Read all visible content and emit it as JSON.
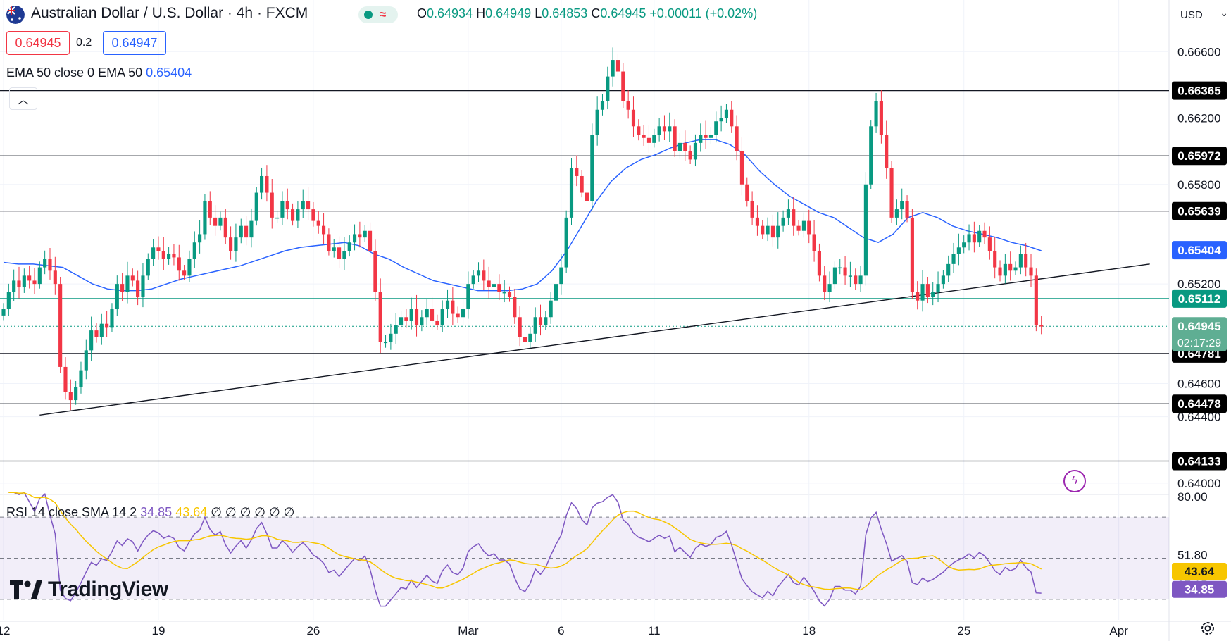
{
  "header": {
    "title": "Australian Dollar / U.S. Dollar · 4h · FXCM",
    "ohlc": {
      "o_label": "O",
      "o": "0.64934",
      "h_label": "H",
      "h": "0.64949",
      "l_label": "L",
      "l": "0.64853",
      "c_label": "C",
      "c": "0.64945",
      "change": "+0.00011 (+0.02%)"
    },
    "sell_price": "0.64945",
    "spread": "0.2",
    "buy_price": "0.64947"
  },
  "ema_legend": {
    "label": "EMA 50 close 0 EMA 50",
    "value": "0.65404"
  },
  "rsi_legend": {
    "label": "RSI 14 close SMA 14 2",
    "rsi": "34.85",
    "sma": "43.64",
    "empties": "∅ ∅ ∅ ∅ ∅ ∅"
  },
  "currency": "USD",
  "brand": "TradingView",
  "colors": {
    "up": "#089981",
    "down": "#f23645",
    "ema": "#2962ff",
    "rsi": "#7e57c2",
    "rsi_sma": "#f7c600",
    "grid": "#f0f3fa",
    "support": "#131722",
    "green_level": "#089981"
  },
  "icons": [
    "australia-flag-icon",
    "market-status-icon",
    "collapse-chevron-icon",
    "lightning-icon",
    "settings-gear-icon",
    "tradingview-logo-icon",
    "currency-chevron-icon"
  ],
  "chart_data": {
    "type": "candlestick",
    "title": "Australian Dollar / U.S. Dollar · 4h · FXCM",
    "ylim": [
      0.6394,
      0.6672
    ],
    "y_ticks": [
      "0.66600",
      "0.66200",
      "0.65800",
      "0.65200",
      "0.64600",
      "0.64400",
      "0.64000"
    ],
    "x_ticks": [
      {
        "label": "12",
        "bar": 0
      },
      {
        "label": "19",
        "bar": 30
      },
      {
        "label": "26",
        "bar": 60
      },
      {
        "label": "Mar",
        "bar": 90
      },
      {
        "label": "6",
        "bar": 108
      },
      {
        "label": "11",
        "bar": 126
      },
      {
        "label": "18",
        "bar": 156
      },
      {
        "label": "25",
        "bar": 186
      },
      {
        "label": "Apr",
        "bar": 216
      }
    ],
    "levels": [
      {
        "label": "0.66365",
        "value": 0.66365,
        "style": "black"
      },
      {
        "label": "0.65972",
        "value": 0.65972,
        "style": "black"
      },
      {
        "label": "0.65639",
        "value": 0.65639,
        "style": "black"
      },
      {
        "label": "0.65112",
        "value": 0.65112,
        "style": "green"
      },
      {
        "label": "0.64781",
        "value": 0.64781,
        "style": "black"
      },
      {
        "label": "0.64478",
        "value": 0.64478,
        "style": "black"
      },
      {
        "label": "0.64133",
        "value": 0.64133,
        "style": "black"
      }
    ],
    "ema_label": "0.65404",
    "last_price": {
      "label": "0.64945",
      "countdown": "02:17:29",
      "value": 0.64945
    },
    "trendline": {
      "from": {
        "bar": 7,
        "price": 0.6441
      },
      "to": {
        "bar": 222,
        "price": 0.6532
      }
    },
    "closes": [
      0.6505,
      0.6515,
      0.6522,
      0.6518,
      0.6525,
      0.6522,
      0.652,
      0.653,
      0.6535,
      0.6528,
      0.652,
      0.647,
      0.6455,
      0.645,
      0.6458,
      0.6468,
      0.648,
      0.6492,
      0.6488,
      0.6496,
      0.6494,
      0.6505,
      0.652,
      0.6515,
      0.6525,
      0.6522,
      0.6512,
      0.6525,
      0.6535,
      0.6542,
      0.654,
      0.6535,
      0.6538,
      0.6536,
      0.6528,
      0.6525,
      0.6535,
      0.6545,
      0.655,
      0.657,
      0.656,
      0.6555,
      0.656,
      0.6548,
      0.654,
      0.6548,
      0.6555,
      0.6548,
      0.6558,
      0.6575,
      0.6585,
      0.6575,
      0.656,
      0.656,
      0.657,
      0.6565,
      0.6558,
      0.6565,
      0.657,
      0.6565,
      0.6558,
      0.6555,
      0.655,
      0.654,
      0.6542,
      0.6535,
      0.654,
      0.6545,
      0.655,
      0.6548,
      0.6552,
      0.654,
      0.6515,
      0.6485,
      0.6485,
      0.649,
      0.6495,
      0.65,
      0.6498,
      0.6505,
      0.6495,
      0.65,
      0.6505,
      0.6498,
      0.6495,
      0.6505,
      0.651,
      0.6502,
      0.65,
      0.6505,
      0.652,
      0.6525,
      0.6528,
      0.6522,
      0.6518,
      0.652,
      0.6515,
      0.6515,
      0.6512,
      0.65,
      0.6488,
      0.6485,
      0.649,
      0.65,
      0.6495,
      0.65,
      0.651,
      0.652,
      0.653,
      0.656,
      0.659,
      0.6585,
      0.6575,
      0.657,
      0.661,
      0.6625,
      0.663,
      0.6645,
      0.6655,
      0.6648,
      0.663,
      0.6625,
      0.6615,
      0.661,
      0.6608,
      0.6605,
      0.661,
      0.6615,
      0.6612,
      0.6615,
      0.66,
      0.6605,
      0.66,
      0.6595,
      0.6605,
      0.661,
      0.6608,
      0.661,
      0.6618,
      0.662,
      0.6625,
      0.6615,
      0.66,
      0.658,
      0.657,
      0.656,
      0.6555,
      0.655,
      0.6555,
      0.6548,
      0.6555,
      0.656,
      0.6565,
      0.6555,
      0.6552,
      0.6558,
      0.655,
      0.654,
      0.6525,
      0.6515,
      0.652,
      0.653,
      0.653,
      0.6525,
      0.6525,
      0.652,
      0.6525,
      0.658,
      0.6615,
      0.663,
      0.661,
      0.659,
      0.656,
      0.6565,
      0.657,
      0.656,
      0.6515,
      0.651,
      0.652,
      0.6512,
      0.6515,
      0.652,
      0.6525,
      0.6532,
      0.6538,
      0.6542,
      0.6545,
      0.655,
      0.6545,
      0.6552,
      0.6548,
      0.654,
      0.653,
      0.6525,
      0.6532,
      0.6528,
      0.653,
      0.6538,
      0.653,
      0.6525,
      0.6495,
      0.64945
    ],
    "ema50": [
      0.6533,
      0.6532,
      0.6532,
      0.6531,
      0.653,
      0.6525,
      0.652,
      0.6517,
      0.6516,
      0.6516,
      0.6517,
      0.652,
      0.6523,
      0.6525,
      0.6527,
      0.6529,
      0.6531,
      0.6534,
      0.6537,
      0.654,
      0.6542,
      0.6543,
      0.6544,
      0.6545,
      0.6543,
      0.6538,
      0.6535,
      0.653,
      0.6526,
      0.6522,
      0.652,
      0.6518,
      0.6516,
      0.6516,
      0.6516,
      0.6517,
      0.652,
      0.6528,
      0.654,
      0.6555,
      0.657,
      0.6582,
      0.659,
      0.6595,
      0.6598,
      0.6602,
      0.6605,
      0.6607,
      0.6607,
      0.6604,
      0.6598,
      0.6588,
      0.658,
      0.6573,
      0.6568,
      0.6563,
      0.656,
      0.6554,
      0.6548,
      0.6545,
      0.655,
      0.656,
      0.6563,
      0.656,
      0.6555,
      0.6552,
      0.655,
      0.6548,
      0.6545,
      0.6543,
      0.654
    ]
  }
}
